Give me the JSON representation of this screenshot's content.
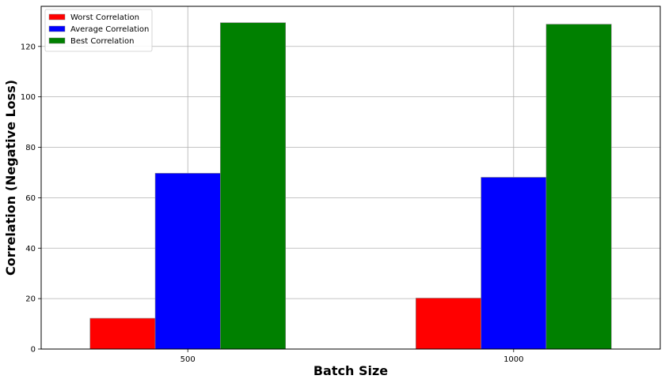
{
  "chart_data": {
    "type": "bar",
    "title": "",
    "xlabel": "Batch Size",
    "ylabel": "Correlation (Negative Loss)",
    "categories": [
      "500",
      "1000"
    ],
    "series": [
      {
        "name": "Worst Correlation",
        "color": "#ff0000",
        "values": [
          12.2,
          20.2
        ]
      },
      {
        "name": "Average Correlation",
        "color": "#0000ff",
        "values": [
          69.7,
          68.1
        ]
      },
      {
        "name": "Best Correlation",
        "color": "#008000",
        "values": [
          129.4,
          128.8
        ]
      }
    ],
    "ylim": [
      0,
      135.9
    ],
    "yticks": [
      0,
      20,
      40,
      60,
      80,
      100,
      120
    ],
    "grid": true,
    "legend_position": "top-left"
  }
}
